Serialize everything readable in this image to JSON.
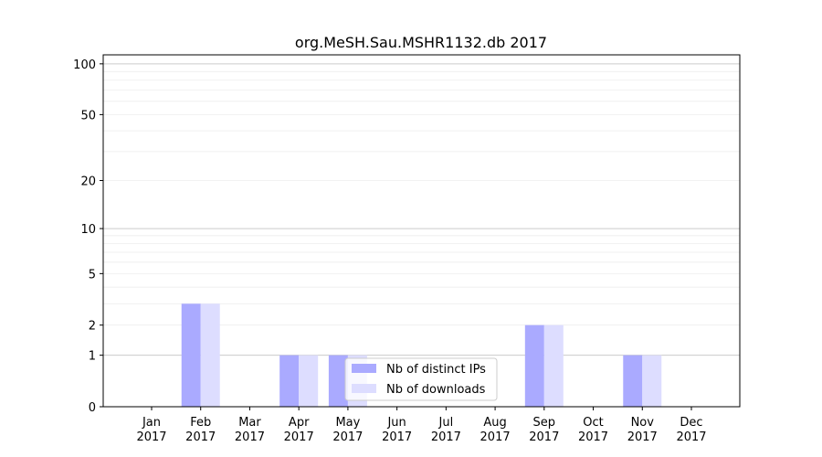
{
  "chart_data": {
    "type": "bar",
    "title": "org.MeSH.Sau.MSHR1132.db 2017",
    "xlabel": "",
    "ylabel": "",
    "yscale": "symlog",
    "ylim": [
      0,
      113
    ],
    "yticks": [
      0,
      1,
      2,
      5,
      10,
      20,
      50,
      100
    ],
    "grid": true,
    "legend_position": "lower-center",
    "categories": [
      "Jan\n2017",
      "Feb\n2017",
      "Mar\n2017",
      "Apr\n2017",
      "May\n2017",
      "Jun\n2017",
      "Jul\n2017",
      "Aug\n2017",
      "Sep\n2017",
      "Oct\n2017",
      "Nov\n2017",
      "Dec\n2017"
    ],
    "series": [
      {
        "name": "Nb of distinct IPs",
        "color": "#aaaaff",
        "values": [
          0,
          3,
          0,
          1,
          1,
          0,
          0,
          0,
          2,
          0,
          1,
          0
        ]
      },
      {
        "name": "Nb of downloads",
        "color": "#ddddff",
        "values": [
          0,
          3,
          0,
          1,
          1,
          0,
          0,
          0,
          2,
          0,
          1,
          0
        ]
      }
    ]
  }
}
